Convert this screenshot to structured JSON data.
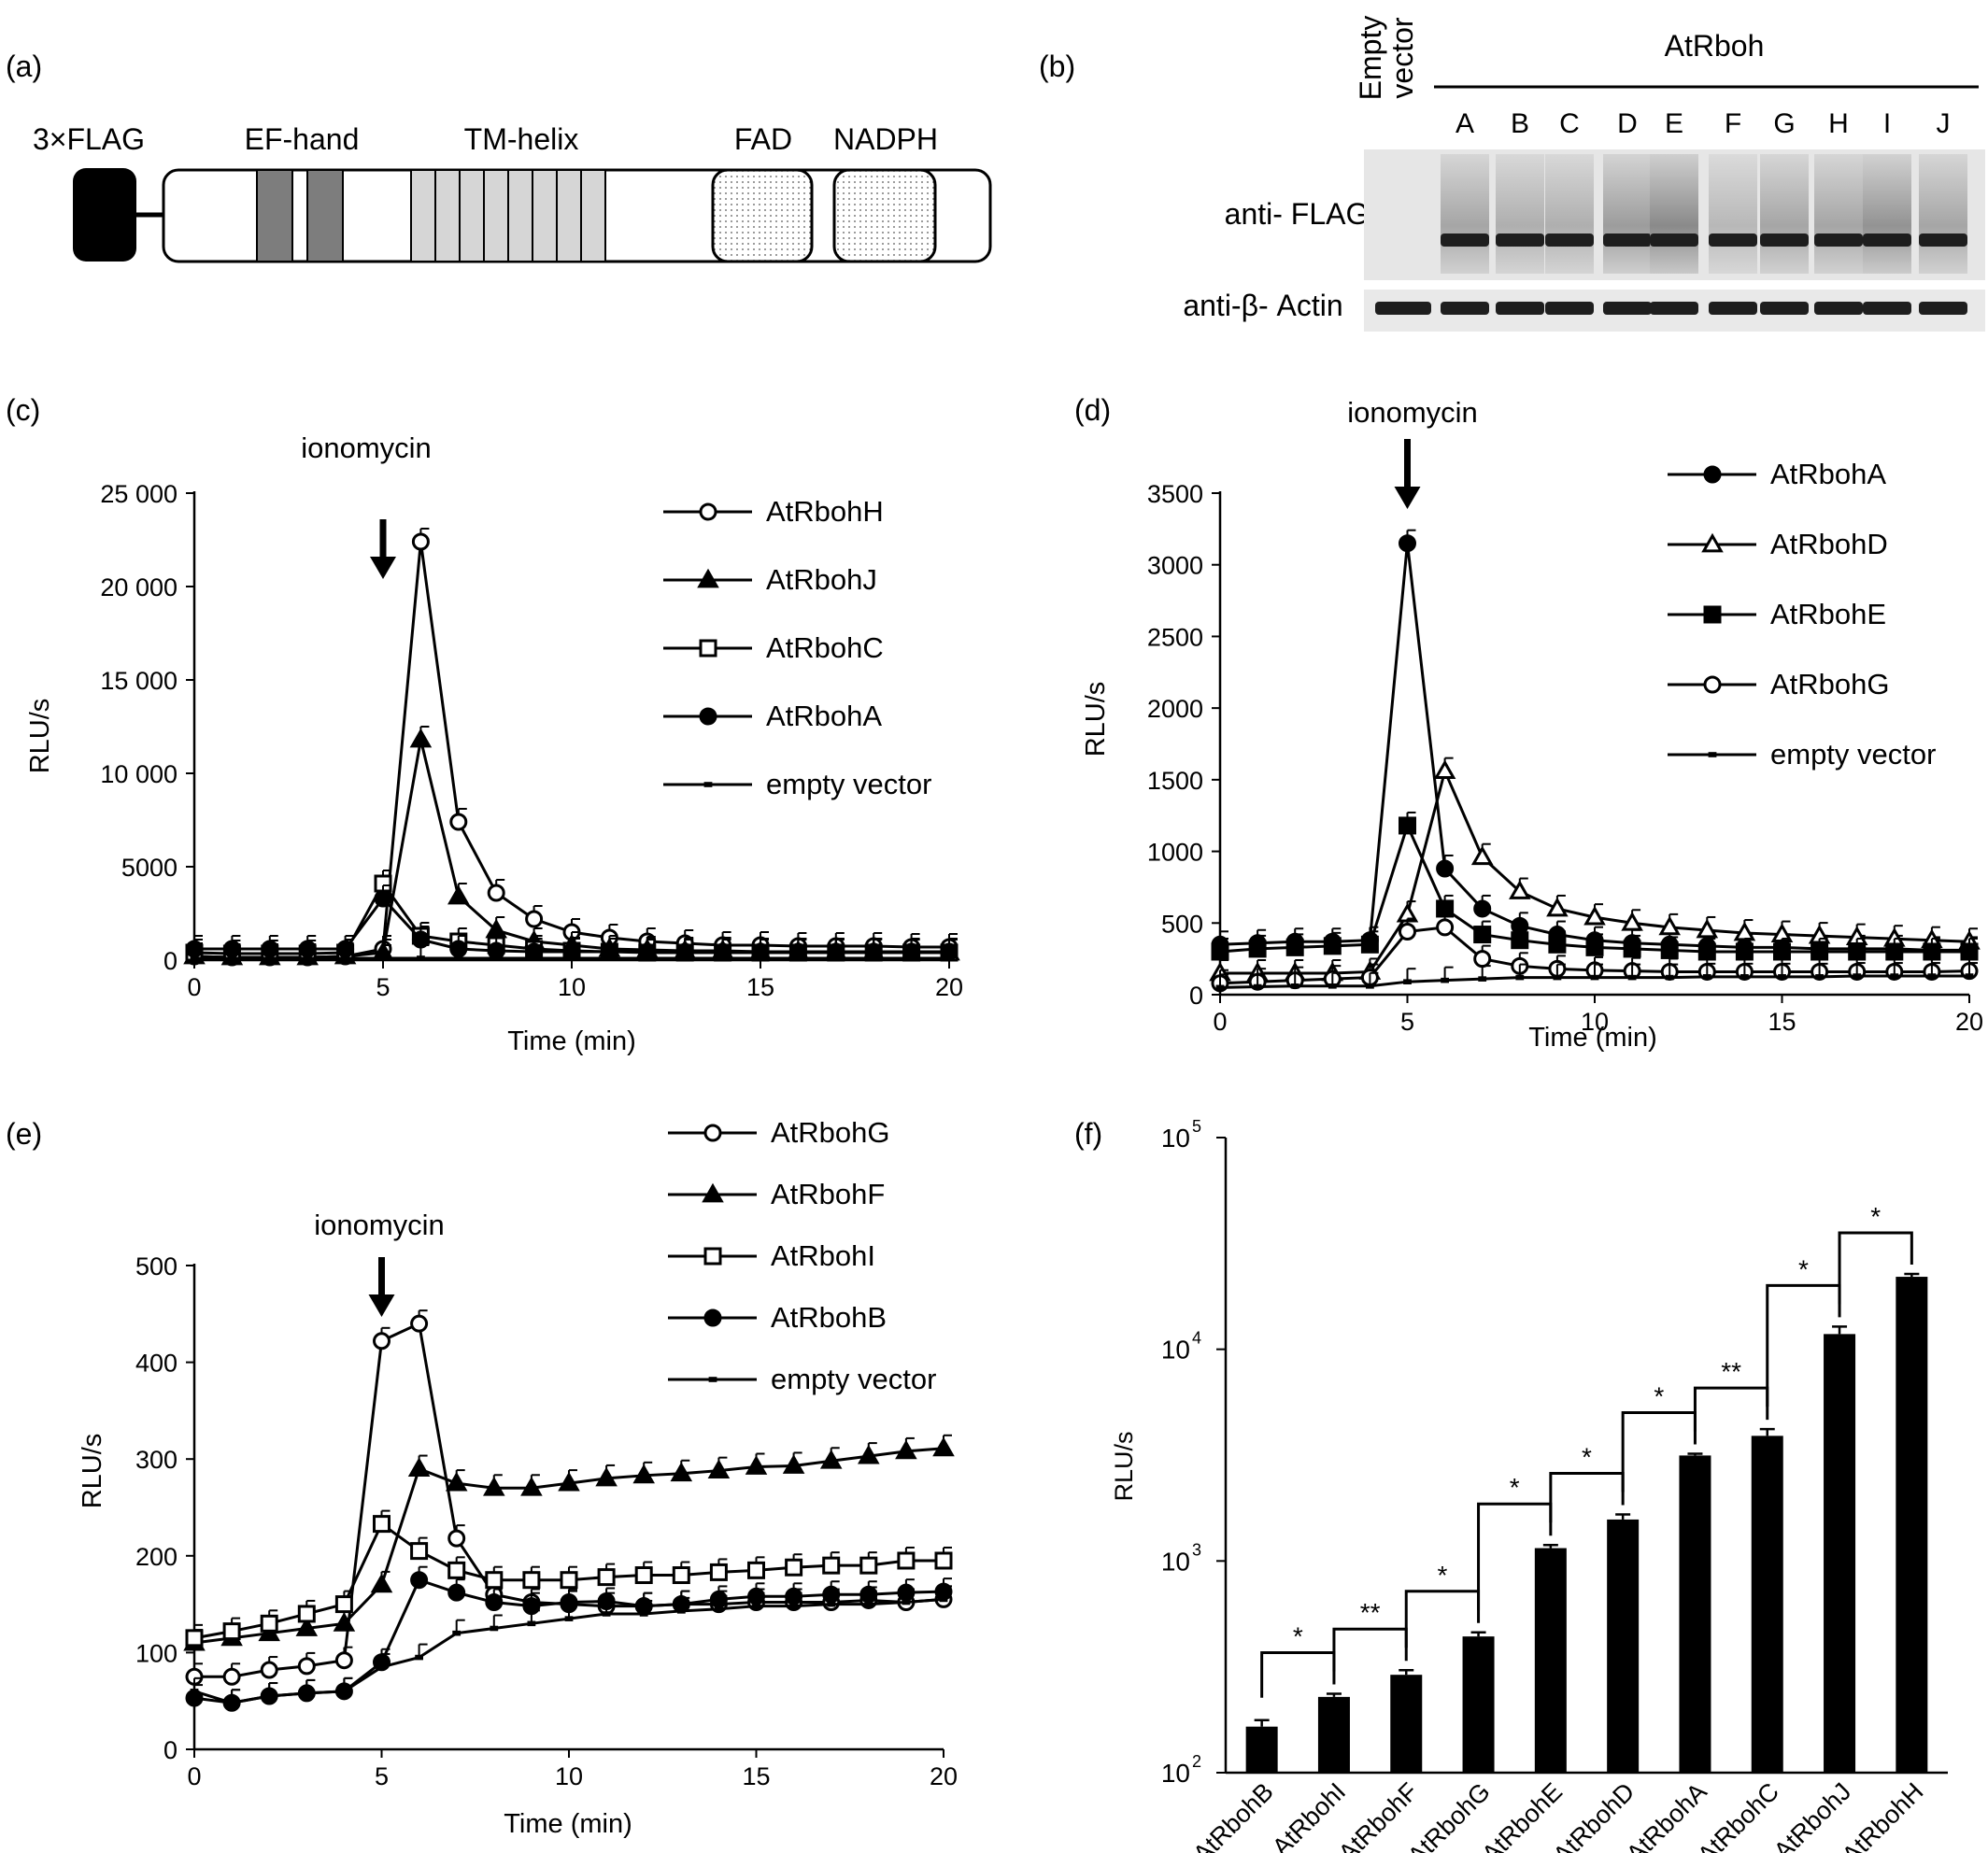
{
  "panel_a": {
    "label": "(a)",
    "domains": [
      "3×FLAG",
      "EF-hand",
      "TM-helix",
      "FAD",
      "NADPH"
    ]
  },
  "panel_b": {
    "label": "(b)",
    "empty_label_1": "Empty",
    "empty_label_2": "vector",
    "group_label": "AtRboh",
    "lanes": [
      "A",
      "B",
      "C",
      "D",
      "E",
      "F",
      "G",
      "H",
      "I",
      "J"
    ],
    "row1_label": "anti- FLAG",
    "row2_label": "anti-β- Actin"
  },
  "chart_data": [
    {
      "panel": "(c)",
      "type": "line",
      "annotation": "ionomycin",
      "annotation_x": 5,
      "xlabel": "Time (min)",
      "ylabel": "RLU/s",
      "xlim": [
        0,
        20
      ],
      "ylim": [
        0,
        25000
      ],
      "xticks": [
        "0",
        "5",
        "10",
        "15",
        "20"
      ],
      "yticks": [
        "0",
        "5000",
        "10 000",
        "15 000",
        "20 000",
        "25 000"
      ],
      "ytick_values": [
        0,
        5000,
        10000,
        15000,
        20000,
        25000
      ],
      "x": [
        0,
        1,
        2,
        3,
        4,
        5,
        6,
        7,
        8,
        9,
        10,
        11,
        12,
        13,
        14,
        15,
        16,
        17,
        18,
        19,
        20
      ],
      "series": [
        {
          "name": "AtRbohH",
          "marker": "circle-open",
          "values": [
            200,
            150,
            150,
            150,
            200,
            600,
            22400,
            7400,
            3600,
            2200,
            1500,
            1200,
            1000,
            900,
            800,
            800,
            750,
            750,
            750,
            700,
            700
          ]
        },
        {
          "name": "AtRbohJ",
          "marker": "triangle-filled",
          "values": [
            200,
            150,
            150,
            150,
            200,
            400,
            11800,
            3400,
            1600,
            1000,
            800,
            600,
            550,
            500,
            500,
            450,
            450,
            450,
            450,
            400,
            400
          ]
        },
        {
          "name": "AtRbohC",
          "marker": "square-open",
          "values": [
            400,
            350,
            350,
            350,
            400,
            4100,
            1300,
            1000,
            800,
            600,
            500,
            450,
            400,
            400,
            400,
            400,
            400,
            400,
            400,
            400,
            400
          ]
        },
        {
          "name": "AtRbohA",
          "marker": "circle-filled",
          "values": [
            600,
            600,
            600,
            600,
            600,
            3300,
            1100,
            600,
            500,
            450,
            450,
            450,
            450,
            450,
            450,
            450,
            450,
            450,
            450,
            450,
            450
          ]
        },
        {
          "name": "empty vector",
          "marker": "bar-small",
          "values": [
            100,
            100,
            100,
            100,
            100,
            100,
            100,
            100,
            100,
            100,
            100,
            100,
            100,
            100,
            100,
            100,
            100,
            100,
            100,
            100,
            100
          ]
        }
      ]
    },
    {
      "panel": "(d)",
      "type": "line",
      "annotation": "ionomycin",
      "annotation_x": 5,
      "xlabel": "Time (min)",
      "ylabel": "RLU/s",
      "xlim": [
        0,
        20
      ],
      "ylim": [
        0,
        3500
      ],
      "xticks": [
        "0",
        "5",
        "10",
        "15",
        "20"
      ],
      "yticks": [
        "0",
        "500",
        "1000",
        "1500",
        "2000",
        "2500",
        "3000",
        "3500"
      ],
      "ytick_values": [
        0,
        500,
        1000,
        1500,
        2000,
        2500,
        3000,
        3500
      ],
      "x": [
        0,
        1,
        2,
        3,
        4,
        5,
        6,
        7,
        8,
        9,
        10,
        11,
        12,
        13,
        14,
        15,
        16,
        17,
        18,
        19,
        20
      ],
      "series": [
        {
          "name": "AtRbohA",
          "marker": "circle-filled",
          "values": [
            350,
            360,
            370,
            370,
            380,
            3150,
            880,
            600,
            480,
            420,
            380,
            360,
            350,
            340,
            330,
            330,
            320,
            320,
            320,
            310,
            310
          ]
        },
        {
          "name": "AtRbohD",
          "marker": "triangle-open",
          "values": [
            150,
            150,
            150,
            150,
            160,
            560,
            1560,
            960,
            720,
            600,
            540,
            500,
            470,
            450,
            430,
            420,
            410,
            400,
            390,
            380,
            370
          ]
        },
        {
          "name": "AtRbohE",
          "marker": "square-filled",
          "values": [
            300,
            320,
            330,
            340,
            350,
            1180,
            600,
            420,
            380,
            350,
            330,
            320,
            310,
            300,
            300,
            300,
            300,
            300,
            300,
            300,
            300
          ]
        },
        {
          "name": "AtRbohG",
          "marker": "circle-open",
          "values": [
            80,
            90,
            100,
            110,
            120,
            440,
            470,
            250,
            200,
            180,
            170,
            165,
            160,
            160,
            160,
            160,
            160,
            160,
            160,
            160,
            165
          ]
        },
        {
          "name": "empty vector",
          "marker": "bar-small",
          "values": [
            50,
            55,
            60,
            60,
            60,
            90,
            100,
            110,
            120,
            120,
            120,
            120,
            120,
            125,
            125,
            125,
            125,
            130,
            130,
            130,
            130
          ]
        }
      ]
    },
    {
      "panel": "(e)",
      "type": "line",
      "annotation": "ionomycin",
      "annotation_x": 5,
      "xlabel": "Time (min)",
      "ylabel": "RLU/s",
      "xlim": [
        0,
        20
      ],
      "ylim": [
        0,
        500
      ],
      "xticks": [
        "0",
        "5",
        "10",
        "15",
        "20"
      ],
      "yticks": [
        "0",
        "100",
        "200",
        "300",
        "400",
        "500"
      ],
      "ytick_values": [
        0,
        100,
        200,
        300,
        400,
        500
      ],
      "x": [
        0,
        1,
        2,
        3,
        4,
        5,
        6,
        7,
        8,
        9,
        10,
        11,
        12,
        13,
        14,
        15,
        16,
        17,
        18,
        19,
        20
      ],
      "series": [
        {
          "name": "AtRbohG",
          "marker": "circle-open",
          "values": [
            75,
            75,
            82,
            86,
            92,
            422,
            440,
            218,
            160,
            152,
            150,
            148,
            148,
            150,
            150,
            152,
            152,
            152,
            154,
            152,
            155
          ]
        },
        {
          "name": "AtRbohF",
          "marker": "triangle-filled",
          "values": [
            110,
            115,
            120,
            125,
            130,
            170,
            290,
            275,
            270,
            270,
            275,
            280,
            283,
            285,
            288,
            292,
            293,
            298,
            303,
            308,
            311
          ]
        },
        {
          "name": "AtRbohI",
          "marker": "square-open",
          "values": [
            115,
            122,
            130,
            140,
            150,
            233,
            205,
            185,
            175,
            175,
            175,
            178,
            180,
            180,
            183,
            185,
            188,
            190,
            190,
            195,
            195
          ]
        },
        {
          "name": "AtRbohB",
          "marker": "circle-filled",
          "values": [
            53,
            48,
            55,
            58,
            60,
            90,
            175,
            162,
            152,
            148,
            152,
            153,
            148,
            150,
            155,
            158,
            158,
            160,
            160,
            162,
            163
          ]
        },
        {
          "name": "empty vector",
          "marker": "bar-small",
          "values": [
            60,
            48,
            55,
            58,
            60,
            85,
            95,
            120,
            125,
            130,
            135,
            140,
            140,
            143,
            145,
            148,
            148,
            150,
            150,
            152,
            155
          ]
        }
      ]
    },
    {
      "panel": "(f)",
      "type": "bar",
      "scale": "log",
      "ylabel": "RLU/s",
      "ylim": [
        100,
        100000
      ],
      "ytick_bases": [
        "10",
        "10",
        "10",
        "10"
      ],
      "ytick_exps": [
        "2",
        "3",
        "4",
        "5"
      ],
      "ytick_values": [
        100,
        1000,
        10000,
        100000
      ],
      "categories": [
        "AtRbohB",
        "AtRbohI",
        "AtRbohF",
        "AtRbohG",
        "AtRbohE",
        "AtRbohD",
        "AtRbohA",
        "AtRbohC",
        "AtRbohJ",
        "AtRbohH"
      ],
      "values": [
        165,
        228,
        290,
        440,
        1150,
        1570,
        3150,
        3900,
        11800,
        22000
      ],
      "errors": [
        12,
        8,
        15,
        20,
        40,
        90,
        60,
        300,
        1000,
        700
      ],
      "significance": [
        {
          "from": 0,
          "to": 1,
          "label": "*"
        },
        {
          "from": 1,
          "to": 2,
          "label": "**"
        },
        {
          "from": 2,
          "to": 3,
          "label": "*"
        },
        {
          "from": 3,
          "to": 4,
          "label": "*"
        },
        {
          "from": 4,
          "to": 5,
          "label": "*"
        },
        {
          "from": 5,
          "to": 6,
          "label": "*"
        },
        {
          "from": 6,
          "to": 7,
          "label": "**"
        },
        {
          "from": 7,
          "to": 8,
          "label": "*"
        },
        {
          "from": 8,
          "to": 9,
          "label": "*"
        }
      ]
    }
  ]
}
